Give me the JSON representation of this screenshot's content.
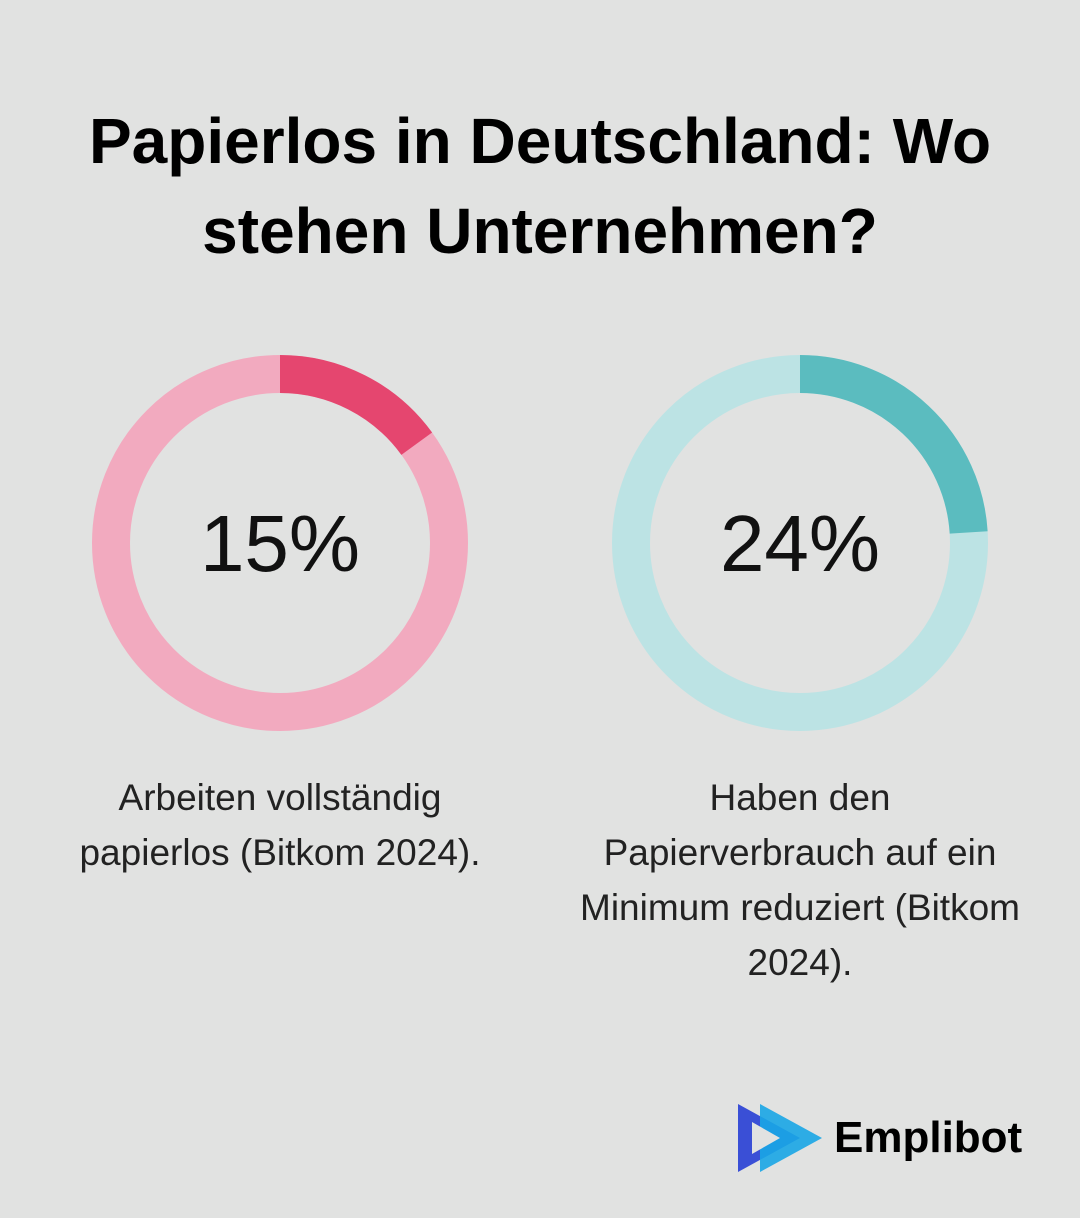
{
  "title": "Papierlos in Deutschland: Wo stehen Unternehmen?",
  "chart_data": [
    {
      "type": "donut",
      "values": [
        15
      ],
      "value_labels": [
        "15%"
      ],
      "ylim": [
        0,
        100
      ],
      "color": "#e5466f",
      "track_color": "#f2aabf",
      "caption": "Arbeiten vollständig papierlos (Bitkom 2024)."
    },
    {
      "type": "donut",
      "values": [
        24
      ],
      "value_labels": [
        "24%"
      ],
      "ylim": [
        0,
        100
      ],
      "color": "#5bbcbf",
      "track_color": "#bce3e4",
      "caption": "Haben den Papierverbrauch auf ein Minimum reduziert (Bitkom 2024)."
    }
  ],
  "brand": "Emplibot"
}
